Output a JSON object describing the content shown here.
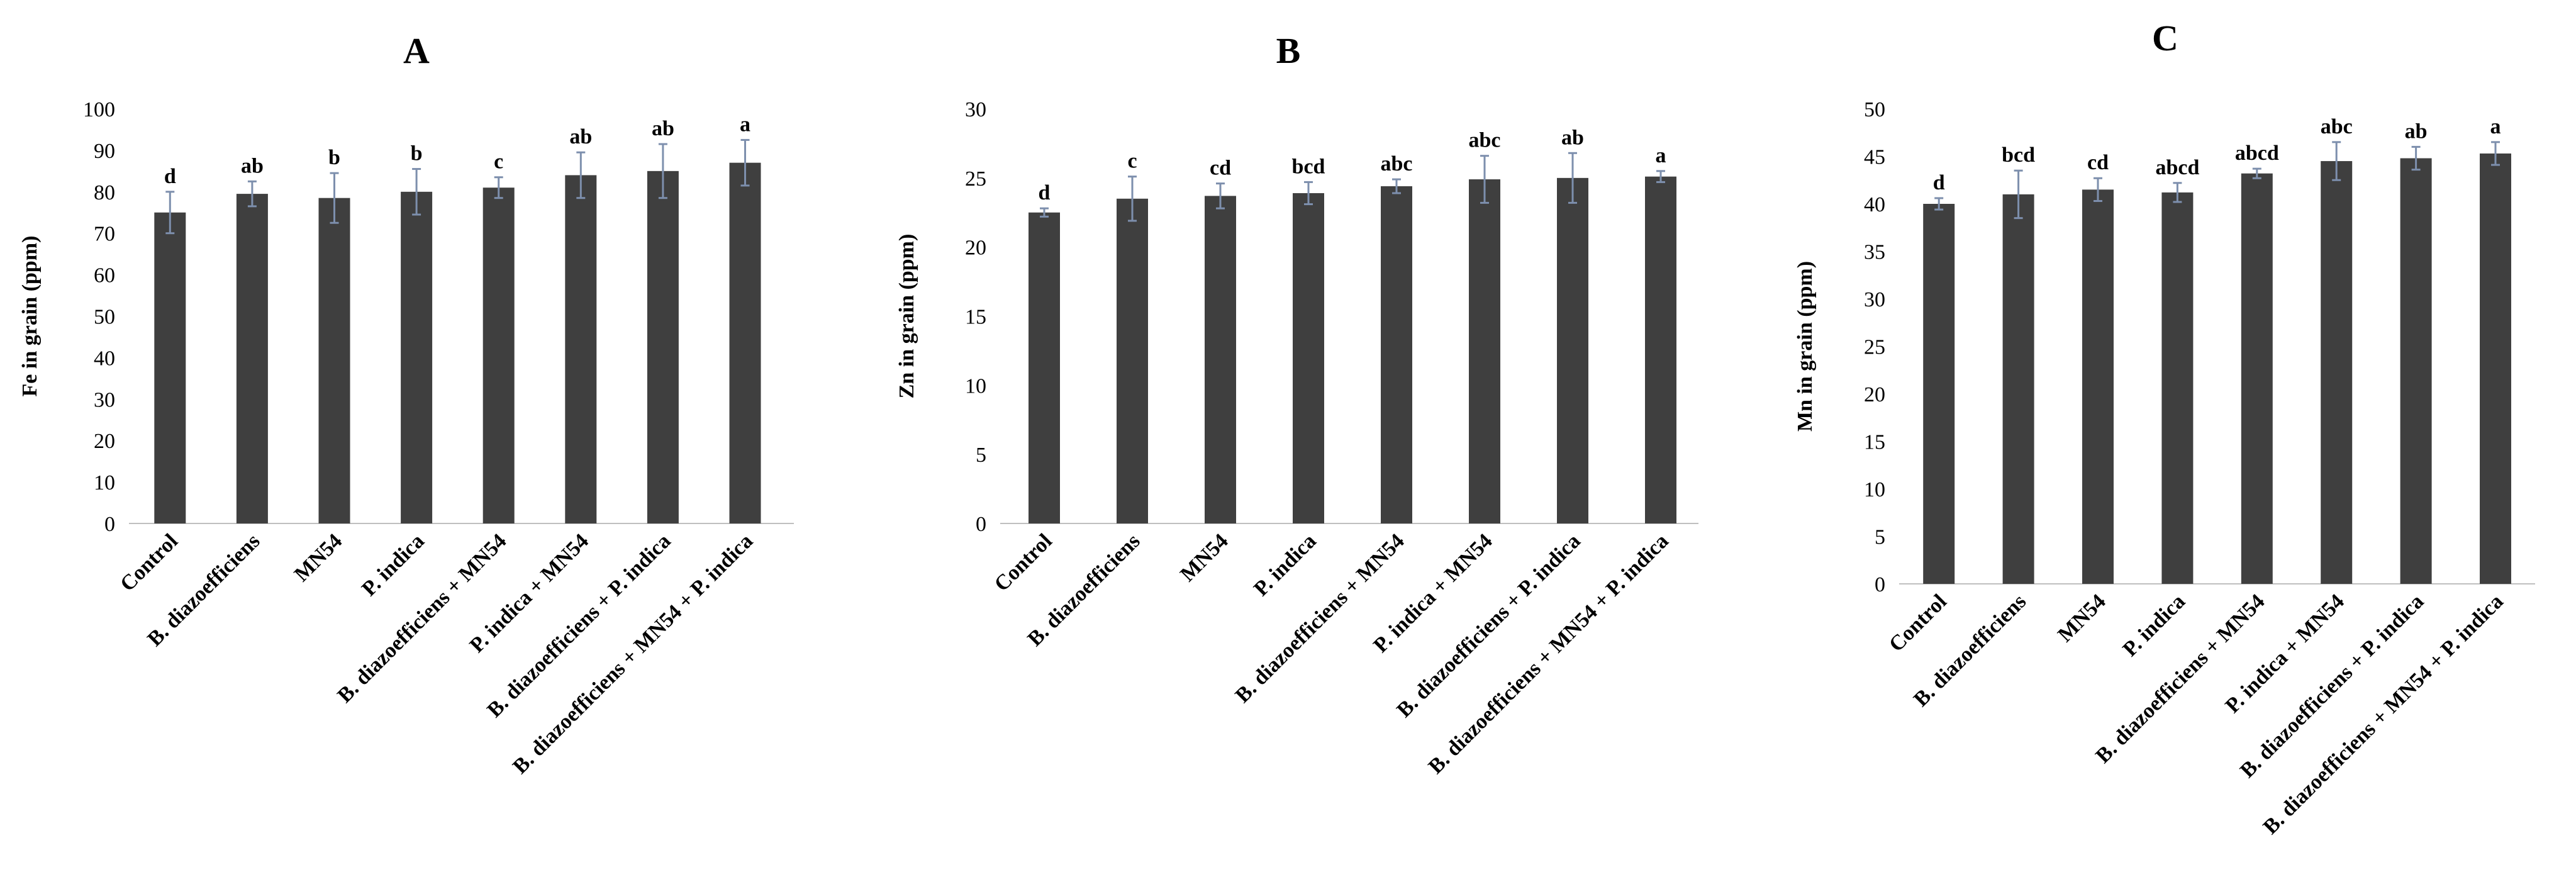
{
  "chart_data": [
    {
      "type": "bar",
      "title": "A",
      "ylabel": "Fe in grain (ppm)",
      "ylim": [
        0,
        100
      ],
      "yticks": [
        0,
        10,
        20,
        30,
        40,
        50,
        60,
        70,
        80,
        90,
        100
      ],
      "categories": [
        "Control",
        "B. diazoefficiens",
        "MN54",
        "P. indica",
        "B. diazoefficiens + MN54",
        "P. indica + MN54",
        "B. diazoefficiens + P. indica",
        "B. diazoefficiens + MN54 + P. indica"
      ],
      "values": [
        75,
        79.5,
        78.5,
        80,
        81,
        84,
        85,
        87
      ],
      "errors": [
        5,
        3,
        6,
        5.5,
        2.5,
        5.5,
        6.5,
        5.5
      ],
      "labels": [
        "d",
        "ab",
        "b",
        "b",
        "c",
        "ab",
        "ab",
        "a"
      ],
      "grid": false,
      "legend": "none"
    },
    {
      "type": "bar",
      "title": "B",
      "ylabel": "Zn in grain (ppm)",
      "ylim": [
        0,
        30
      ],
      "yticks": [
        0,
        5,
        10,
        15,
        20,
        25,
        30
      ],
      "categories": [
        "Control",
        "B. diazoefficiens",
        "MN54",
        "P. indica",
        "B. diazoefficiens + MN54",
        "P. indica + MN54",
        "B. diazoefficiens + P. indica",
        "B. diazoefficiens + MN54 + P. indica"
      ],
      "values": [
        22.5,
        23.5,
        23.7,
        23.9,
        24.4,
        24.9,
        25,
        25.1
      ],
      "errors": [
        0.3,
        1.6,
        0.9,
        0.8,
        0.5,
        1.7,
        1.8,
        0.4
      ],
      "labels": [
        "d",
        "c",
        "cd",
        "bcd",
        "abc",
        "abc",
        "ab",
        "a"
      ],
      "grid": false,
      "legend": "none"
    },
    {
      "type": "bar",
      "title": "C",
      "ylabel": "Mn in grain (ppm)",
      "ylim": [
        0,
        50
      ],
      "yticks": [
        0,
        5,
        10,
        15,
        20,
        25,
        30,
        35,
        40,
        45,
        50
      ],
      "categories": [
        "Control",
        "B. diazoefficiens",
        "MN54",
        "P. indica",
        "B. diazoefficiens + MN54",
        "P. indica + MN54",
        "B. diazoefficiens + P. indica",
        "B. diazoefficiens + MN54 + P. indica"
      ],
      "values": [
        40,
        41,
        41.5,
        41.2,
        43.2,
        44.5,
        44.8,
        45.3
      ],
      "errors": [
        0.6,
        2.5,
        1.2,
        1,
        0.5,
        2,
        1.2,
        1.2
      ],
      "labels": [
        "d",
        "bcd",
        "cd",
        "abcd",
        "abcd",
        "abc",
        "ab",
        "a"
      ],
      "grid": false,
      "legend": "none"
    }
  ]
}
